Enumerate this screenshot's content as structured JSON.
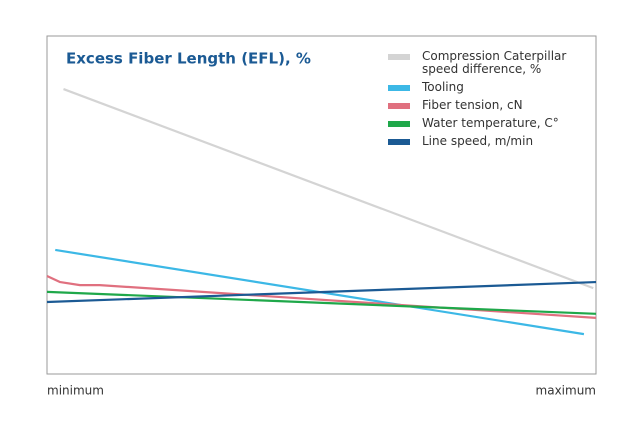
{
  "chart_data": {
    "type": "line",
    "title": "Excess Fiber Length (EFL), %",
    "xlim": [
      0,
      100
    ],
    "xticks": [
      {
        "value": 0,
        "label": "minimum"
      },
      {
        "value": 100,
        "label": "maximum"
      }
    ],
    "ylim": [
      0,
      100
    ],
    "legend": "upper right",
    "series": [
      {
        "name": "Compression Caterpillar speed difference, %",
        "color": "#d4d4d4",
        "x": [
          3,
          99.5
        ],
        "values": [
          84.3,
          25.4
        ]
      },
      {
        "name": "Tooling",
        "color": "#3cb8e6",
        "x": [
          1.5,
          97.8
        ],
        "values": [
          36.7,
          11.8
        ]
      },
      {
        "name": "Fiber tension, cN",
        "color": "#e0707f",
        "x": [
          0,
          2.4,
          6,
          9.6,
          100
        ],
        "values": [
          29.0,
          27.2,
          26.3,
          26.3,
          16.6
        ]
      },
      {
        "name": "Water temperature, C°",
        "color": "#1fa84a",
        "x": [
          0,
          100
        ],
        "values": [
          24.3,
          17.8
        ]
      },
      {
        "name": "Line speed, m/min",
        "color": "#1b5a94",
        "x": [
          0,
          100
        ],
        "values": [
          21.3,
          27.2
        ]
      }
    ]
  }
}
